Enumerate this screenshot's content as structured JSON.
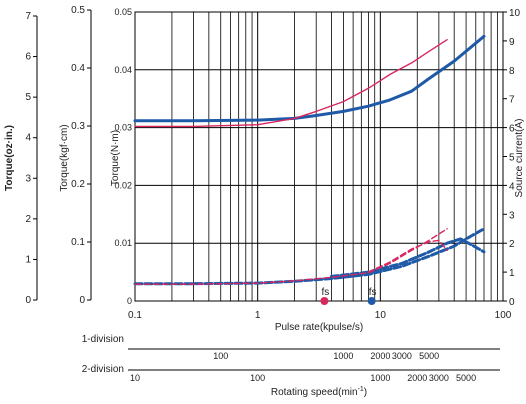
{
  "chart_data": {
    "type": "line",
    "x_scale": "log",
    "xlabel": "Pulse rate(kpulse/s)",
    "xlim": [
      0.1,
      100
    ],
    "x_ticks": [
      "0.1",
      "1",
      "10",
      "100"
    ],
    "grid": true,
    "axes": {
      "oz_in": {
        "label": "Torque(oz·in.)",
        "ticks": [
          "0",
          "1",
          "2",
          "3",
          "4",
          "5",
          "6",
          "7"
        ]
      },
      "kgf_cm": {
        "label": "Torque(kgf·cm)",
        "ticks": [
          "0",
          "0.1",
          "0.2",
          "0.3",
          "0.4",
          "0.5"
        ]
      },
      "n_m": {
        "label": "Torque(N·m)",
        "ticks": [
          "0",
          "0.01",
          "0.02",
          "0.03",
          "0.04",
          "0.05"
        ],
        "ylim": [
          0,
          0.05
        ]
      },
      "current": {
        "label": "Source current(A)",
        "ticks": [
          "0",
          "1",
          "2",
          "3",
          "4",
          "5",
          "6",
          "7",
          "8",
          "9",
          "10"
        ],
        "ylim": [
          0,
          10
        ]
      }
    },
    "series": [
      {
        "axis": "n_m",
        "style": "solid-thick",
        "color": "#1e5aa8",
        "x": [
          0.1,
          0.3,
          1,
          2,
          3,
          5,
          8,
          12,
          18,
          25,
          40,
          70
        ],
        "y": [
          0.0312,
          0.0312,
          0.0313,
          0.0316,
          0.0321,
          0.0328,
          0.0337,
          0.0348,
          0.0363,
          0.0385,
          0.0415,
          0.0458
        ]
      },
      {
        "axis": "n_m",
        "style": "solid-thin",
        "color": "#d8265e",
        "x": [
          0.1,
          0.3,
          1,
          2,
          3,
          5,
          8,
          12,
          18,
          25,
          35
        ],
        "y": [
          0.0302,
          0.0302,
          0.0305,
          0.0316,
          0.0328,
          0.0345,
          0.0368,
          0.0392,
          0.0412,
          0.0432,
          0.0452
        ]
      },
      {
        "axis": "current",
        "style": "dashed-thick",
        "color": "#1e5aa8",
        "x": [
          0.1,
          0.3,
          1,
          2,
          4,
          8,
          15,
          25,
          40,
          55,
          70
        ],
        "y": [
          0.6,
          0.6,
          0.62,
          0.68,
          0.78,
          0.92,
          1.2,
          1.55,
          1.9,
          2.25,
          2.5
        ]
      },
      {
        "axis": "current",
        "style": "dashed-thick",
        "color": "#1e5aa8",
        "x": [
          4,
          8,
          15,
          25,
          35,
          45,
          55,
          70
        ],
        "y": [
          0.85,
          1.0,
          1.3,
          1.7,
          2.0,
          2.15,
          1.95,
          1.7
        ]
      },
      {
        "axis": "current",
        "style": "dashed-thin",
        "color": "#d8265e",
        "x": [
          0.1,
          0.3,
          1,
          2,
          4,
          8,
          12,
          18,
          25,
          35
        ],
        "y": [
          0.58,
          0.58,
          0.62,
          0.7,
          0.82,
          0.98,
          1.3,
          1.75,
          2.1,
          2.5
        ]
      },
      {
        "axis": "current",
        "style": "dashed-thin",
        "color": "#d8265e",
        "x": [
          8,
          12,
          18,
          25,
          30,
          35
        ],
        "y": [
          1.0,
          1.35,
          1.8,
          2.05,
          2.1,
          1.75
        ]
      }
    ],
    "markers": [
      {
        "label": "fs",
        "x": 3.5,
        "color": "#d8265e"
      },
      {
        "label": "fs",
        "x": 8.5,
        "color": "#1e5aa8"
      }
    ],
    "scales": [
      {
        "label": "1-division",
        "ticks": [
          {
            "text": "100",
            "x": 0.5
          },
          {
            "text": "1000",
            "x": 5
          },
          {
            "text": "2000",
            "x": 10
          },
          {
            "text": "3000",
            "x": 15
          },
          {
            "text": "5000",
            "x": 25
          }
        ]
      },
      {
        "label": "2-division",
        "ticks": [
          {
            "text": "10",
            "x": 0.1
          },
          {
            "text": "100",
            "x": 1
          },
          {
            "text": "1000",
            "x": 10
          },
          {
            "text": "2000",
            "x": 20
          },
          {
            "text": "3000",
            "x": 30
          },
          {
            "text": "5000",
            "x": 50
          }
        ]
      }
    ],
    "scale_xlabel": "Rotating speed(min",
    "scale_xlabel_sup": "-1",
    "scale_xlabel_end": ")"
  }
}
